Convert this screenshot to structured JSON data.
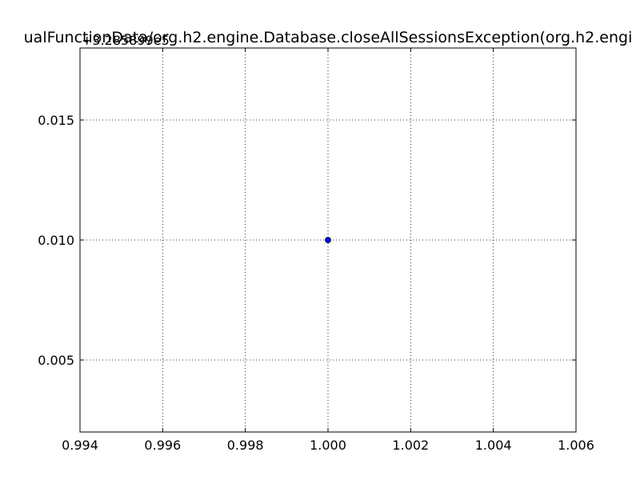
{
  "chart_data": {
    "type": "scatter",
    "title": "ualFunctionData/org.h2.engine.Database.closeAllSessionsException(org.h2.engi",
    "xlabel": "",
    "ylabel": "",
    "y_offset_label": "+3.285899e5",
    "xlim": [
      0.994,
      1.006
    ],
    "ylim": [
      0.002,
      0.018
    ],
    "xticks": [
      0.994,
      0.996,
      0.998,
      1.0,
      1.002,
      1.004,
      1.006
    ],
    "xtick_labels": [
      "0.994",
      "0.996",
      "0.998",
      "1.000",
      "1.002",
      "1.004",
      "1.006"
    ],
    "yticks": [
      0.005,
      0.01,
      0.015
    ],
    "ytick_labels": [
      "0.005",
      "0.010",
      "0.015"
    ],
    "grid": true,
    "series": [
      {
        "points": [
          {
            "x": 1.0,
            "y": 0.01
          }
        ],
        "color": "#0000ff",
        "edge_color": "#000000"
      }
    ]
  }
}
